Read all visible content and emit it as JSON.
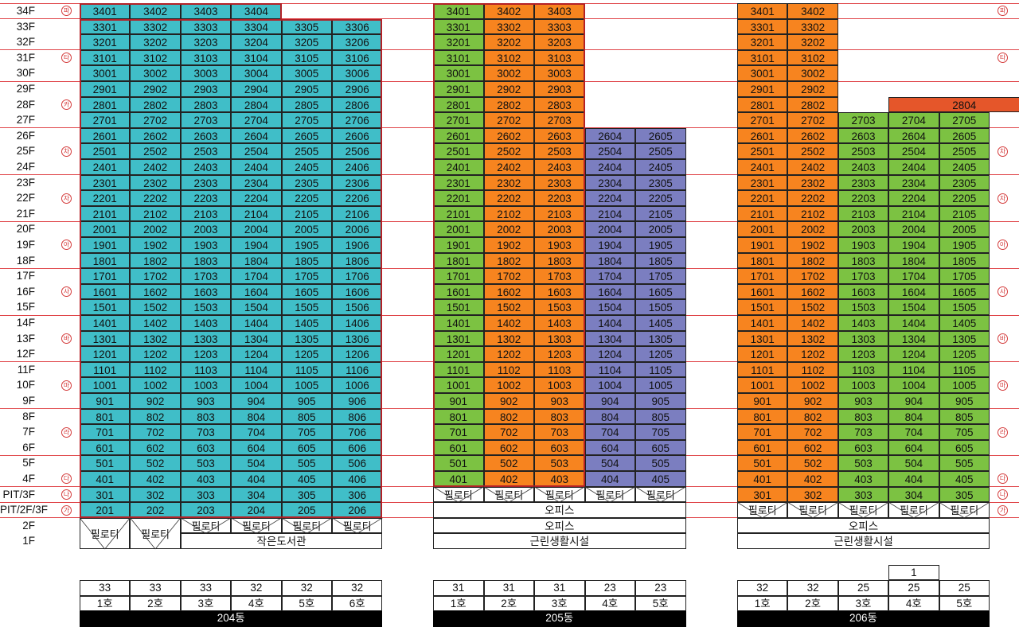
{
  "floor_labels": [
    "34F",
    "33F",
    "32F",
    "31F",
    "30F",
    "29F",
    "28F",
    "27F",
    "26F",
    "25F",
    "24F",
    "23F",
    "22F",
    "21F",
    "20F",
    "19F",
    "18F",
    "17F",
    "16F",
    "15F",
    "14F",
    "13F",
    "12F",
    "11F",
    "10F",
    "9F",
    "8F",
    "7F",
    "6F",
    "5F",
    "4F",
    "PIT/3F",
    "PIT/2F/3F",
    "2F",
    "1F"
  ],
  "zone_markers": [
    "파",
    "타",
    "카",
    "차",
    "자",
    "아",
    "사",
    "바",
    "마",
    "라",
    "다",
    "나",
    "가"
  ],
  "colors": {
    "cyan": "#40bec8",
    "green": "#7cc242",
    "orange": "#f7841f",
    "purple": "#7b7ec0",
    "red": "#e5562a",
    "line": "#e0464a",
    "outline": "#b42026"
  },
  "buildings": [
    {
      "name": "204동",
      "unit_counts": [
        "33",
        "33",
        "33",
        "32",
        "32",
        "32"
      ],
      "unit_names": [
        "1호",
        "2호",
        "3호",
        "4호",
        "5호",
        "6호"
      ],
      "count_colors": [
        "cyan",
        "cyan",
        "cyan",
        "cyan",
        "cyan",
        "cyan"
      ],
      "first_floor": "작은도서관",
      "pilotis": [
        "필로티",
        "필로티",
        "필로티",
        "필로티",
        "필로티",
        "필로티"
      ]
    },
    {
      "name": "205동",
      "unit_counts": [
        "31",
        "31",
        "31",
        "23",
        "23"
      ],
      "unit_names": [
        "1호",
        "2호",
        "3호",
        "4호",
        "5호"
      ],
      "count_colors": [
        "green",
        "orange",
        "orange",
        "purple",
        "purple"
      ],
      "pit3f": [
        "필로티",
        "필로티",
        "필로티",
        "필로티",
        "필로티"
      ],
      "pit2f3f": "오피스",
      "floor2": "오피스",
      "first_floor": "근린생활시설"
    },
    {
      "name": "206동",
      "extra_count": "1",
      "unit_counts": [
        "32",
        "32",
        "25",
        "25",
        "25"
      ],
      "unit_names": [
        "1호",
        "2호",
        "3호",
        "4호",
        "5호"
      ],
      "count_colors": [
        "orange",
        "orange",
        "green",
        "green",
        "green"
      ],
      "pilotis": [
        "필로티",
        "필로티",
        "필로티",
        "필로티",
        "필로티"
      ],
      "floor2": "오피스",
      "first_floor": "근린생활시설"
    }
  ]
}
